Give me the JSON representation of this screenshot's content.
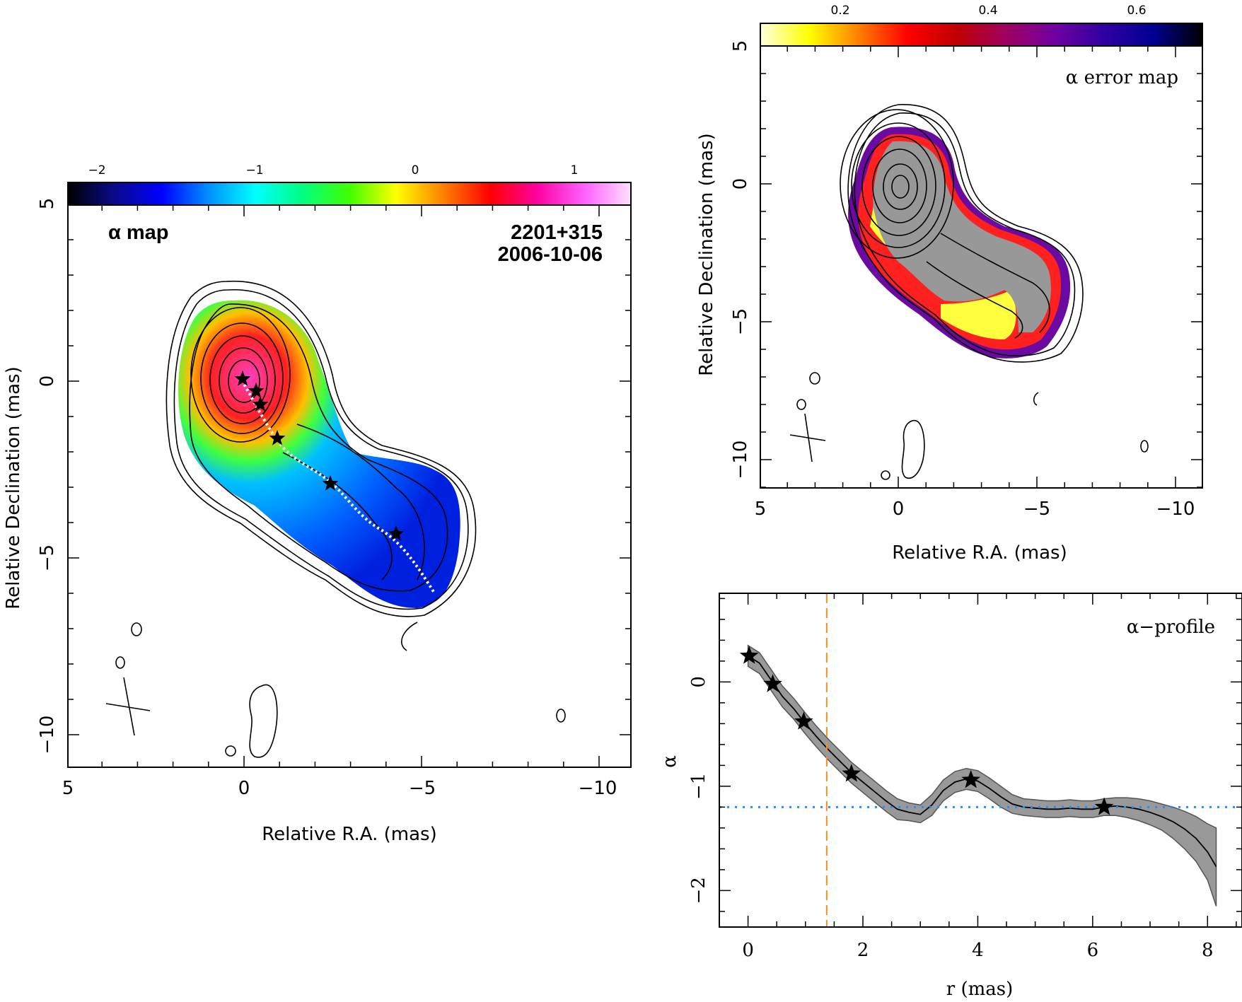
{
  "alpha_map": {
    "label": "α map",
    "source": "2201+315",
    "date": "2006-10-06",
    "xlabel": "Relative R.A. (mas)",
    "ylabel": "Relative Declination (mas)",
    "xticks": [
      "5",
      "0",
      "−5",
      "−10"
    ],
    "yticks": [
      "5",
      "0",
      "−5",
      "−10"
    ],
    "colorbar_ticks": [
      "−2",
      "−1",
      "0",
      "1"
    ],
    "colorbar_colors": [
      "#000000",
      "#0a0a8a",
      "#0000ff",
      "#0090ff",
      "#00ffff",
      "#00ff80",
      "#40ff00",
      "#ffff00",
      "#ff8000",
      "#ff0000",
      "#ff00a0",
      "#ff60ff",
      "#ffe0ff"
    ]
  },
  "error_map": {
    "label": "α error map",
    "xlabel": "Relative R.A. (mas)",
    "ylabel": "Relative Declination (mas)",
    "xticks": [
      "5",
      "0",
      "−5",
      "−10"
    ],
    "yticks": [
      "5",
      "0",
      "−5",
      "−10"
    ],
    "colorbar_ticks": [
      "0.2",
      "0.4",
      "0.6"
    ],
    "colorbar_colors": [
      "#ffffe0",
      "#ffff00",
      "#ff8000",
      "#ff0000",
      "#c00000",
      "#a00060",
      "#7000a0",
      "#3000a0",
      "#000090",
      "#000000"
    ]
  },
  "chart_data": {
    "type": "line",
    "label": "α−profile",
    "xlabel": "r (mas)",
    "ylabel": "α",
    "xlim": [
      -0.5,
      8.6
    ],
    "ylim": [
      -2.35,
      0.85
    ],
    "xticks": [
      "0",
      "2",
      "4",
      "6",
      "8"
    ],
    "yticks": [
      "0",
      "−1",
      "−2"
    ],
    "x": [
      0.0,
      0.2,
      0.4,
      0.6,
      0.8,
      1.0,
      1.2,
      1.4,
      1.6,
      1.8,
      2.0,
      2.2,
      2.4,
      2.6,
      2.8,
      3.0,
      3.2,
      3.4,
      3.6,
      3.8,
      4.0,
      4.2,
      4.4,
      4.6,
      4.8,
      5.0,
      5.2,
      5.4,
      5.6,
      5.8,
      6.0,
      6.2,
      6.4,
      6.6,
      6.8,
      7.0,
      7.2,
      7.4,
      7.6,
      7.8,
      8.0,
      8.15
    ],
    "alpha": [
      0.25,
      0.18,
      0.02,
      -0.14,
      -0.26,
      -0.4,
      -0.53,
      -0.65,
      -0.76,
      -0.87,
      -0.96,
      -1.05,
      -1.14,
      -1.22,
      -1.25,
      -1.27,
      -1.18,
      -1.04,
      -0.96,
      -0.93,
      -0.95,
      -1.02,
      -1.1,
      -1.17,
      -1.2,
      -1.21,
      -1.22,
      -1.22,
      -1.21,
      -1.22,
      -1.22,
      -1.2,
      -1.19,
      -1.2,
      -1.22,
      -1.25,
      -1.29,
      -1.34,
      -1.41,
      -1.5,
      -1.63,
      -1.77
    ],
    "band_low": [
      0.15,
      0.08,
      -0.08,
      -0.24,
      -0.36,
      -0.5,
      -0.63,
      -0.75,
      -0.86,
      -0.97,
      -1.06,
      -1.15,
      -1.24,
      -1.32,
      -1.33,
      -1.35,
      -1.28,
      -1.14,
      -1.06,
      -1.03,
      -1.05,
      -1.12,
      -1.2,
      -1.26,
      -1.28,
      -1.29,
      -1.3,
      -1.3,
      -1.29,
      -1.3,
      -1.3,
      -1.28,
      -1.28,
      -1.3,
      -1.33,
      -1.37,
      -1.42,
      -1.5,
      -1.6,
      -1.72,
      -1.9,
      -2.15
    ],
    "band_high": [
      0.35,
      0.28,
      0.12,
      -0.04,
      -0.16,
      -0.3,
      -0.43,
      -0.55,
      -0.66,
      -0.77,
      -0.86,
      -0.95,
      -1.04,
      -1.12,
      -1.16,
      -1.18,
      -1.08,
      -0.94,
      -0.86,
      -0.83,
      -0.85,
      -0.92,
      -1.0,
      -1.08,
      -1.12,
      -1.13,
      -1.14,
      -1.14,
      -1.13,
      -1.14,
      -1.14,
      -1.12,
      -1.11,
      -1.11,
      -1.12,
      -1.14,
      -1.17,
      -1.2,
      -1.24,
      -1.29,
      -1.36,
      -1.4
    ],
    "stars": [
      {
        "r": 0.02,
        "alpha": 0.25
      },
      {
        "r": 0.43,
        "alpha": -0.02
      },
      {
        "r": 0.97,
        "alpha": -0.38
      },
      {
        "r": 1.8,
        "alpha": -0.88
      },
      {
        "r": 3.88,
        "alpha": -0.94
      },
      {
        "r": 6.2,
        "alpha": -1.2
      }
    ],
    "vline_r": 1.37,
    "hline_alpha": -1.2
  }
}
